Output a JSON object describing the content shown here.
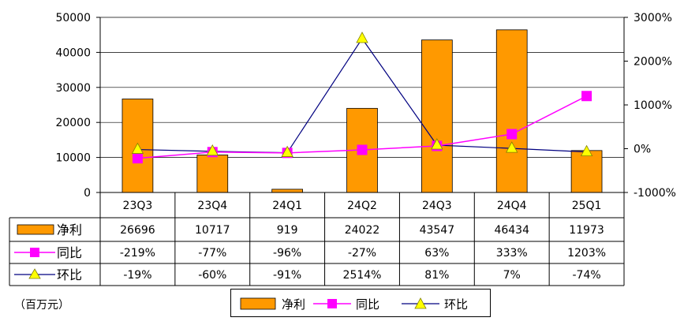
{
  "chart_data": {
    "type": "bar",
    "categories": [
      "23Q3",
      "23Q4",
      "24Q1",
      "24Q2",
      "24Q3",
      "24Q4",
      "25Q1"
    ],
    "series": [
      {
        "name": "净利",
        "kind": "bar",
        "axis": "left",
        "values": [
          26696,
          10717,
          919,
          24022,
          43547,
          46434,
          11973
        ],
        "labels": [
          "26696",
          "10717",
          "919",
          "24022",
          "43547",
          "46434",
          "11973"
        ],
        "color": "#FF9900"
      },
      {
        "name": "同比",
        "kind": "line",
        "axis": "right",
        "values": [
          -219,
          -77,
          -96,
          -27,
          63,
          333,
          1203
        ],
        "labels": [
          "-219%",
          "-77%",
          "-96%",
          "-27%",
          "63%",
          "333%",
          "1203%"
        ],
        "color": "#FF00FF",
        "marker": "square"
      },
      {
        "name": "环比",
        "kind": "line",
        "axis": "right",
        "values": [
          -19,
          -60,
          -91,
          2514,
          81,
          7,
          -74
        ],
        "labels": [
          "-19%",
          "-60%",
          "-91%",
          "2514%",
          "81%",
          "7%",
          "-74%"
        ],
        "color": "#000080",
        "marker_color": "#FFFF00",
        "marker": "triangle"
      }
    ],
    "yleft": {
      "ticks": [
        "0",
        "10000",
        "20000",
        "30000",
        "40000",
        "50000"
      ],
      "ylim": [
        0,
        50000
      ]
    },
    "yright": {
      "ticks": [
        "-1000%",
        "0%",
        "1000%",
        "2000%",
        "3000%"
      ],
      "ylim": [
        -1000,
        3000
      ]
    },
    "grid": "horizontal",
    "legend_position": "bottom"
  },
  "unit_note": "（百万元）"
}
